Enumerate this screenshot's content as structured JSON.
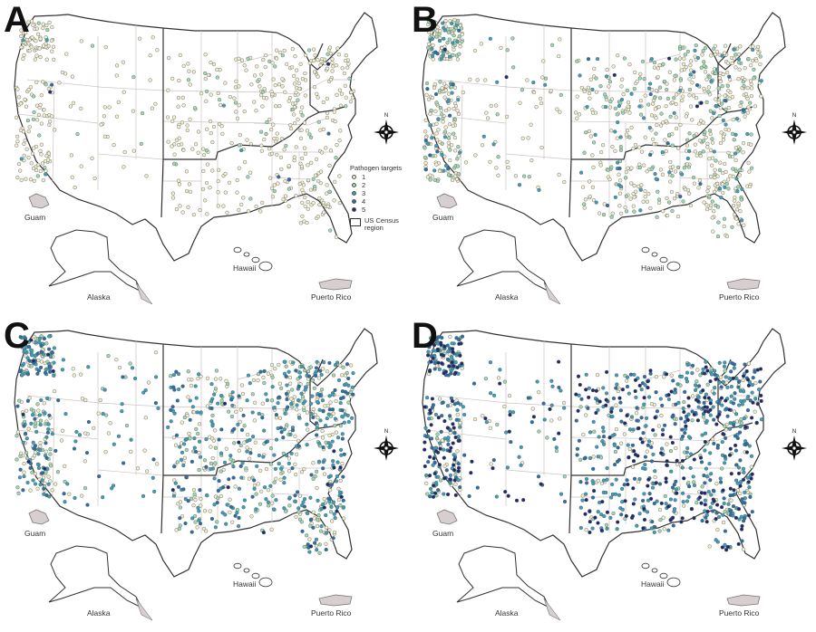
{
  "figure": {
    "panels": [
      {
        "letter": "A",
        "show_legend": true,
        "dots": {
          "1": 560,
          "2": 55,
          "3": 6,
          "4": 4,
          "5": 2
        }
      },
      {
        "letter": "B",
        "show_legend": false,
        "dots": {
          "1": 620,
          "2": 230,
          "3": 110,
          "4": 25,
          "5": 6
        }
      },
      {
        "letter": "C",
        "show_legend": false,
        "dots": {
          "1": 330,
          "2": 190,
          "3": 340,
          "4": 160,
          "5": 20
        }
      },
      {
        "letter": "D",
        "show_legend": false,
        "dots": {
          "1": 170,
          "2": 90,
          "3": 380,
          "4": 220,
          "5": 260
        }
      }
    ],
    "labels": {
      "guam": "Guam",
      "alaska": "Alaska",
      "hawaii": "Hawaii",
      "puerto_rico": "Puerto Rico",
      "compass_n": "N"
    },
    "legend": {
      "title": "Pathogen targets",
      "items": [
        "1",
        "2",
        "3",
        "4",
        "5"
      ],
      "region_label": "US Census region"
    },
    "colors": {
      "1": "#f2efcf",
      "2": "#9fd9b2",
      "3": "#3a9fbd",
      "4": "#2a6fa8",
      "5": "#1c2a6e",
      "state_border": "#cfc3c3",
      "region_border": "#333333",
      "land_fill": "#ffffff",
      "territory_fill": "#d7cfcf"
    }
  }
}
